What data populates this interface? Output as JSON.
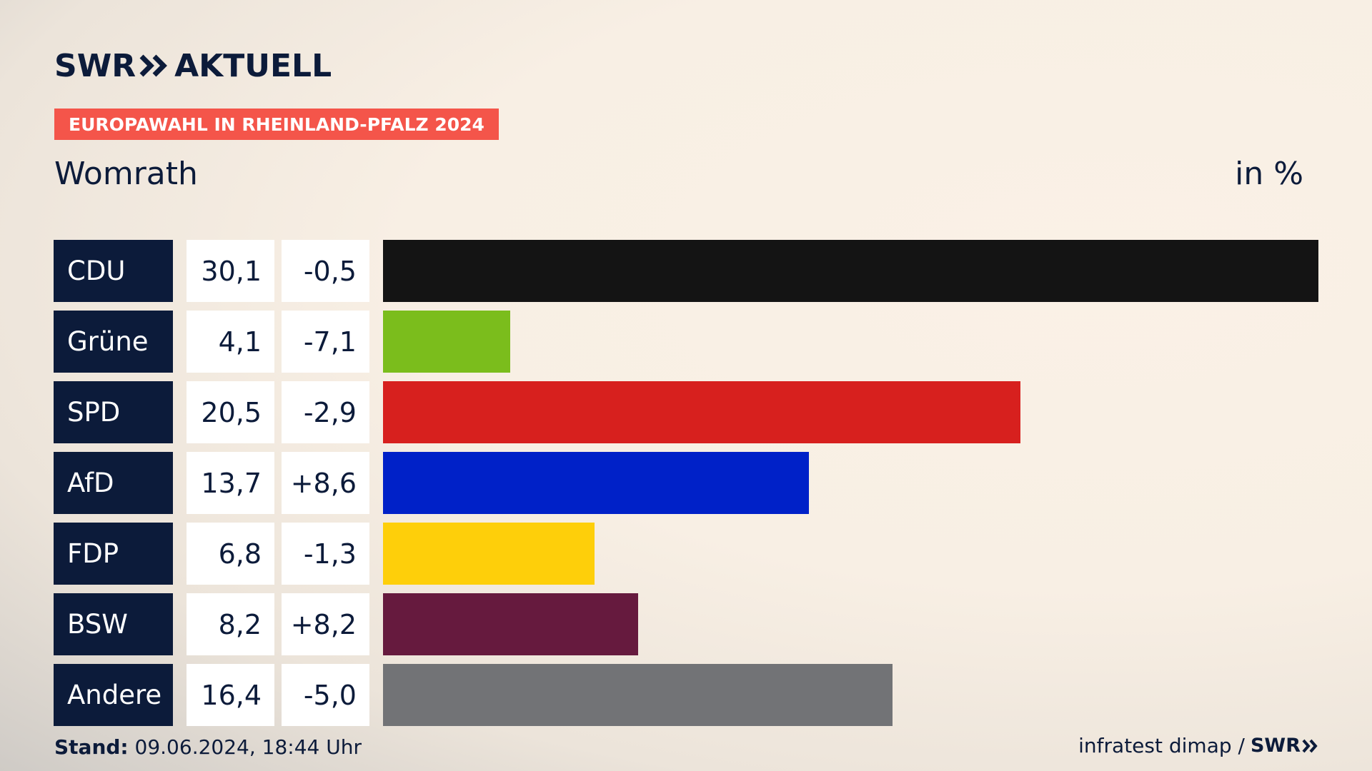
{
  "header": {
    "logo_swr": "SWR",
    "logo_aktuell": "AKTUELL",
    "badge": "EUROPAWAHL IN RHEINLAND-PFALZ 2024",
    "place": "Womrath",
    "unit": "in %"
  },
  "footer": {
    "stand_label": "Stand:",
    "stand_value": "09.06.2024, 18:44 Uhr",
    "source": "infratest dimap /",
    "source_logo": "SWR"
  },
  "colors": {
    "navy": "#0c1b3a",
    "badge": "#f4554a"
  },
  "chart_data": {
    "type": "bar",
    "orientation": "horizontal",
    "categories": [
      "CDU",
      "Grüne",
      "SPD",
      "AfD",
      "FDP",
      "BSW",
      "Andere"
    ],
    "values": [
      30.1,
      4.1,
      20.5,
      13.7,
      6.8,
      8.2,
      16.4
    ],
    "value_labels": [
      "30,1",
      "4,1",
      "20,5",
      "13,7",
      "6,8",
      "8,2",
      "16,4"
    ],
    "diff_labels": [
      "-0,5",
      "-7,1",
      "-2,9",
      "+8,6",
      "-1,3",
      "+8,2",
      "-5,0"
    ],
    "diffs": [
      -0.5,
      -7.1,
      -2.9,
      8.6,
      -1.3,
      8.2,
      -5.0
    ],
    "colors": [
      "#141414",
      "#7bbd1c",
      "#d7201e",
      "#0021c8",
      "#fecf0a",
      "#661a3e",
      "#727376"
    ],
    "xlim": [
      0,
      30.1
    ]
  }
}
